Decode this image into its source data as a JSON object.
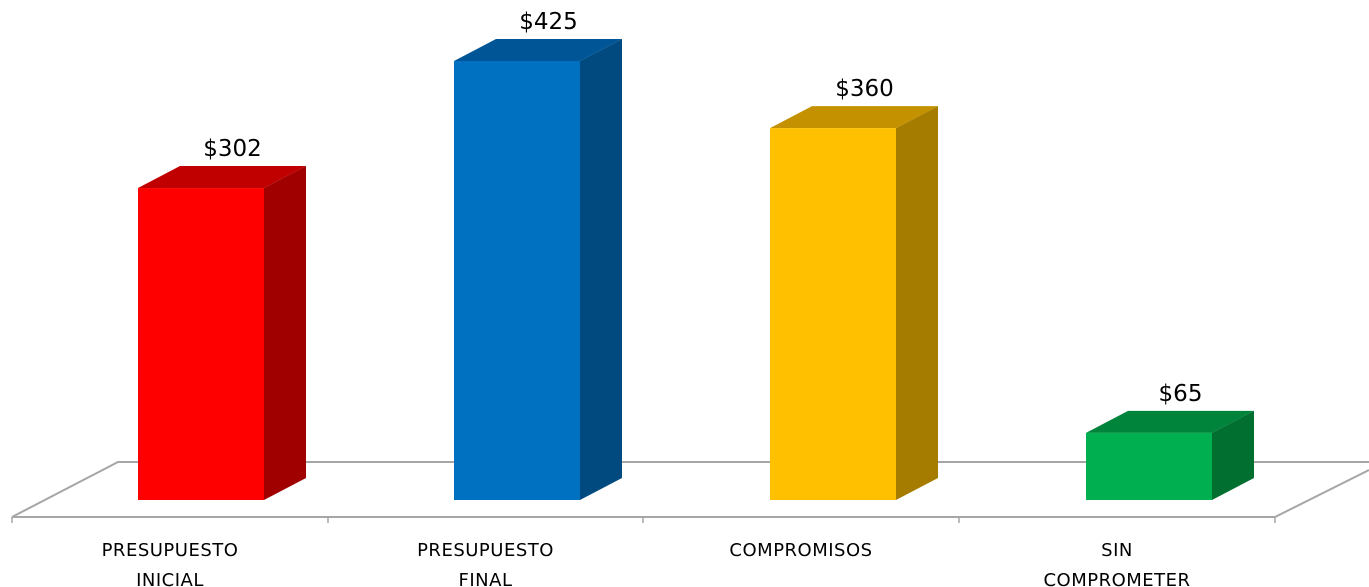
{
  "chart_data": {
    "type": "bar",
    "title": "",
    "xlabel": "",
    "ylabel": "",
    "categories": [
      [
        "PRESUPUESTO",
        "INICIAL"
      ],
      [
        "PRESUPUESTO",
        "FINAL"
      ],
      [
        "COMPROMISOS"
      ],
      [
        "SIN",
        "COMPROMETER"
      ]
    ],
    "values": [
      302,
      425,
      360,
      65
    ],
    "value_labels": [
      "$302",
      "$425",
      "$360",
      "$65"
    ],
    "ylim": [
      0,
      425
    ],
    "grid": false,
    "legend": "none",
    "style": "3d-column",
    "colors": [
      {
        "front": "#ff0000",
        "top": "#c00000",
        "side": "#a00000"
      },
      {
        "front": "#0070c0",
        "top": "#005596",
        "side": "#004a80"
      },
      {
        "front": "#ffc000",
        "top": "#c49100",
        "side": "#a67c00"
      },
      {
        "front": "#00b050",
        "top": "#00843b",
        "side": "#006f30"
      }
    ]
  }
}
